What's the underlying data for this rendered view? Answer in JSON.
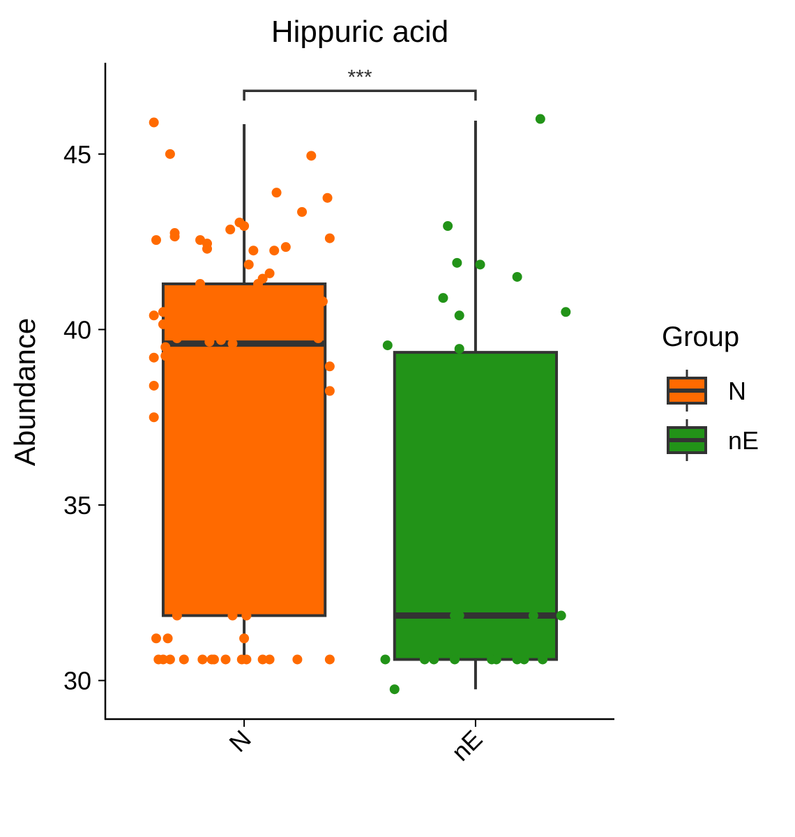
{
  "chart_data": {
    "type": "box",
    "title": "Hippuric acid",
    "xlabel": "",
    "ylabel": "Abundance",
    "ylim": [
      28.9,
      47.6
    ],
    "yticks": [
      30,
      35,
      40,
      45
    ],
    "categories": [
      "N",
      "nE"
    ],
    "colors": {
      "N": "#ff6a00",
      "nE": "#229318",
      "outline": "#333333"
    },
    "legend": {
      "title": "Group",
      "position": "right",
      "entries": [
        "N",
        "nE"
      ]
    },
    "grid": false,
    "significance": {
      "label": "***",
      "from": "N",
      "to": "nE",
      "y": 46.8
    },
    "boxes": [
      {
        "group": "N",
        "q1": 31.85,
        "median": 39.6,
        "q3": 41.3,
        "whisker_low": 30.6,
        "whisker_high": 45.85
      },
      {
        "group": "nE",
        "q1": 30.6,
        "median": 31.85,
        "q3": 39.35,
        "whisker_low": 29.75,
        "whisker_high": 45.95
      }
    ],
    "points": [
      {
        "group": "N",
        "offset": -0.39,
        "y": 45.9
      },
      {
        "group": "N",
        "offset": -0.32,
        "y": 45.0
      },
      {
        "group": "N",
        "offset": 0.29,
        "y": 44.95
      },
      {
        "group": "N",
        "offset": 0.36,
        "y": 43.75
      },
      {
        "group": "N",
        "offset": 0.14,
        "y": 43.9
      },
      {
        "group": "N",
        "offset": 0.25,
        "y": 43.35
      },
      {
        "group": "N",
        "offset": -0.06,
        "y": 42.85
      },
      {
        "group": "N",
        "offset": -0.02,
        "y": 43.05
      },
      {
        "group": "N",
        "offset": 0.0,
        "y": 42.95
      },
      {
        "group": "N",
        "offset": -0.3,
        "y": 42.75
      },
      {
        "group": "N",
        "offset": -0.3,
        "y": 42.65
      },
      {
        "group": "N",
        "offset": -0.38,
        "y": 42.55
      },
      {
        "group": "N",
        "offset": -0.19,
        "y": 42.55
      },
      {
        "group": "N",
        "offset": -0.16,
        "y": 42.45
      },
      {
        "group": "N",
        "offset": -0.16,
        "y": 42.3
      },
      {
        "group": "N",
        "offset": 0.04,
        "y": 42.25
      },
      {
        "group": "N",
        "offset": 0.13,
        "y": 42.25
      },
      {
        "group": "N",
        "offset": 0.18,
        "y": 42.35
      },
      {
        "group": "N",
        "offset": 0.37,
        "y": 42.6
      },
      {
        "group": "N",
        "offset": 0.02,
        "y": 41.85
      },
      {
        "group": "N",
        "offset": 0.11,
        "y": 41.6
      },
      {
        "group": "N",
        "offset": 0.08,
        "y": 41.45
      },
      {
        "group": "N",
        "offset": 0.06,
        "y": 41.3
      },
      {
        "group": "N",
        "offset": -0.19,
        "y": 41.3
      },
      {
        "group": "N",
        "offset": 0.34,
        "y": 40.8
      },
      {
        "group": "N",
        "offset": -0.35,
        "y": 40.5
      },
      {
        "group": "N",
        "offset": -0.39,
        "y": 40.4
      },
      {
        "group": "N",
        "offset": -0.35,
        "y": 40.15
      },
      {
        "group": "N",
        "offset": 0.32,
        "y": 39.75
      },
      {
        "group": "N",
        "offset": -0.29,
        "y": 39.75
      },
      {
        "group": "N",
        "offset": -0.15,
        "y": 39.65
      },
      {
        "group": "N",
        "offset": -0.1,
        "y": 39.7
      },
      {
        "group": "N",
        "offset": -0.05,
        "y": 39.6
      },
      {
        "group": "N",
        "offset": -0.34,
        "y": 39.5
      },
      {
        "group": "N",
        "offset": -0.34,
        "y": 39.25
      },
      {
        "group": "N",
        "offset": -0.39,
        "y": 39.2
      },
      {
        "group": "N",
        "offset": 0.37,
        "y": 38.95
      },
      {
        "group": "N",
        "offset": -0.39,
        "y": 38.4
      },
      {
        "group": "N",
        "offset": 0.37,
        "y": 38.25
      },
      {
        "group": "N",
        "offset": -0.39,
        "y": 37.5
      },
      {
        "group": "N",
        "offset": -0.29,
        "y": 31.85
      },
      {
        "group": "N",
        "offset": -0.05,
        "y": 31.85
      },
      {
        "group": "N",
        "offset": 0.01,
        "y": 31.85
      },
      {
        "group": "N",
        "offset": -0.38,
        "y": 31.2
      },
      {
        "group": "N",
        "offset": -0.33,
        "y": 31.2
      },
      {
        "group": "N",
        "offset": 0.0,
        "y": 31.2
      },
      {
        "group": "N",
        "offset": -0.37,
        "y": 30.6
      },
      {
        "group": "N",
        "offset": -0.35,
        "y": 30.6
      },
      {
        "group": "N",
        "offset": -0.32,
        "y": 30.6
      },
      {
        "group": "N",
        "offset": -0.26,
        "y": 30.6
      },
      {
        "group": "N",
        "offset": -0.18,
        "y": 30.6
      },
      {
        "group": "N",
        "offset": -0.14,
        "y": 30.6
      },
      {
        "group": "N",
        "offset": -0.13,
        "y": 30.6
      },
      {
        "group": "N",
        "offset": -0.08,
        "y": 30.6
      },
      {
        "group": "N",
        "offset": -0.01,
        "y": 30.6
      },
      {
        "group": "N",
        "offset": 0.01,
        "y": 30.6
      },
      {
        "group": "N",
        "offset": 0.08,
        "y": 30.6
      },
      {
        "group": "N",
        "offset": 0.11,
        "y": 30.6
      },
      {
        "group": "N",
        "offset": 0.23,
        "y": 30.6
      },
      {
        "group": "N",
        "offset": 0.37,
        "y": 30.6
      },
      {
        "group": "nE",
        "offset": 0.28,
        "y": 46.0
      },
      {
        "group": "nE",
        "offset": -0.12,
        "y": 42.95
      },
      {
        "group": "nE",
        "offset": -0.08,
        "y": 41.9
      },
      {
        "group": "nE",
        "offset": 0.02,
        "y": 41.85
      },
      {
        "group": "nE",
        "offset": 0.18,
        "y": 41.5
      },
      {
        "group": "nE",
        "offset": -0.14,
        "y": 40.9
      },
      {
        "group": "nE",
        "offset": -0.07,
        "y": 40.4
      },
      {
        "group": "nE",
        "offset": 0.39,
        "y": 40.5
      },
      {
        "group": "nE",
        "offset": -0.38,
        "y": 39.55
      },
      {
        "group": "nE",
        "offset": -0.07,
        "y": 39.45
      },
      {
        "group": "nE",
        "offset": -0.09,
        "y": 31.85
      },
      {
        "group": "nE",
        "offset": -0.07,
        "y": 31.85
      },
      {
        "group": "nE",
        "offset": 0.25,
        "y": 31.85
      },
      {
        "group": "nE",
        "offset": 0.37,
        "y": 31.85
      },
      {
        "group": "nE",
        "offset": -0.39,
        "y": 30.6
      },
      {
        "group": "nE",
        "offset": -0.22,
        "y": 30.6
      },
      {
        "group": "nE",
        "offset": -0.18,
        "y": 30.6
      },
      {
        "group": "nE",
        "offset": -0.09,
        "y": 30.6
      },
      {
        "group": "nE",
        "offset": 0.07,
        "y": 30.6
      },
      {
        "group": "nE",
        "offset": 0.09,
        "y": 30.6
      },
      {
        "group": "nE",
        "offset": 0.18,
        "y": 30.6
      },
      {
        "group": "nE",
        "offset": 0.21,
        "y": 30.6
      },
      {
        "group": "nE",
        "offset": 0.29,
        "y": 30.6
      },
      {
        "group": "nE",
        "offset": -0.35,
        "y": 29.75
      }
    ]
  }
}
